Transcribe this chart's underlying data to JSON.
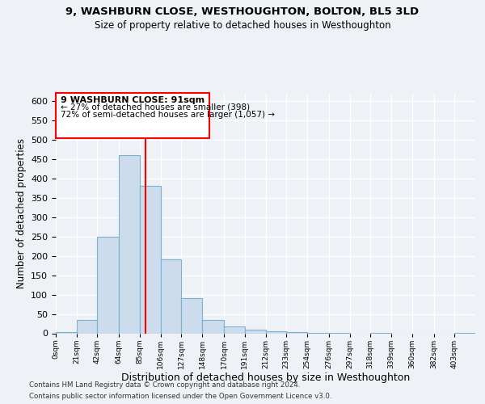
{
  "title1": "9, WASHBURN CLOSE, WESTHOUGHTON, BOLTON, BL5 3LD",
  "title2": "Size of property relative to detached houses in Westhoughton",
  "xlabel": "Distribution of detached houses by size in Westhoughton",
  "ylabel": "Number of detached properties",
  "footnote1": "Contains HM Land Registry data © Crown copyright and database right 2024.",
  "footnote2": "Contains public sector information licensed under the Open Government Licence v3.0.",
  "bar_color": "#ccdcec",
  "bar_edge_color": "#7ab0d0",
  "red_line_x": 91,
  "annotation_title": "9 WASHBURN CLOSE: 91sqm",
  "annotation_line1": "← 27% of detached houses are smaller (398)",
  "annotation_line2": "72% of semi-detached houses are larger (1,057) →",
  "bins": [
    0,
    21,
    42,
    64,
    85,
    106,
    127,
    148,
    170,
    191,
    212,
    233,
    254,
    276,
    297,
    318,
    339,
    360,
    382,
    403,
    424
  ],
  "counts": [
    3,
    35,
    250,
    460,
    380,
    190,
    90,
    35,
    18,
    10,
    5,
    3,
    2,
    1,
    0,
    1,
    0,
    0,
    0,
    1
  ],
  "ylim": [
    0,
    620
  ],
  "yticks": [
    0,
    50,
    100,
    150,
    200,
    250,
    300,
    350,
    400,
    450,
    500,
    550,
    600
  ],
  "background_color": "#eef2f7",
  "grid_color": "#ffffff"
}
